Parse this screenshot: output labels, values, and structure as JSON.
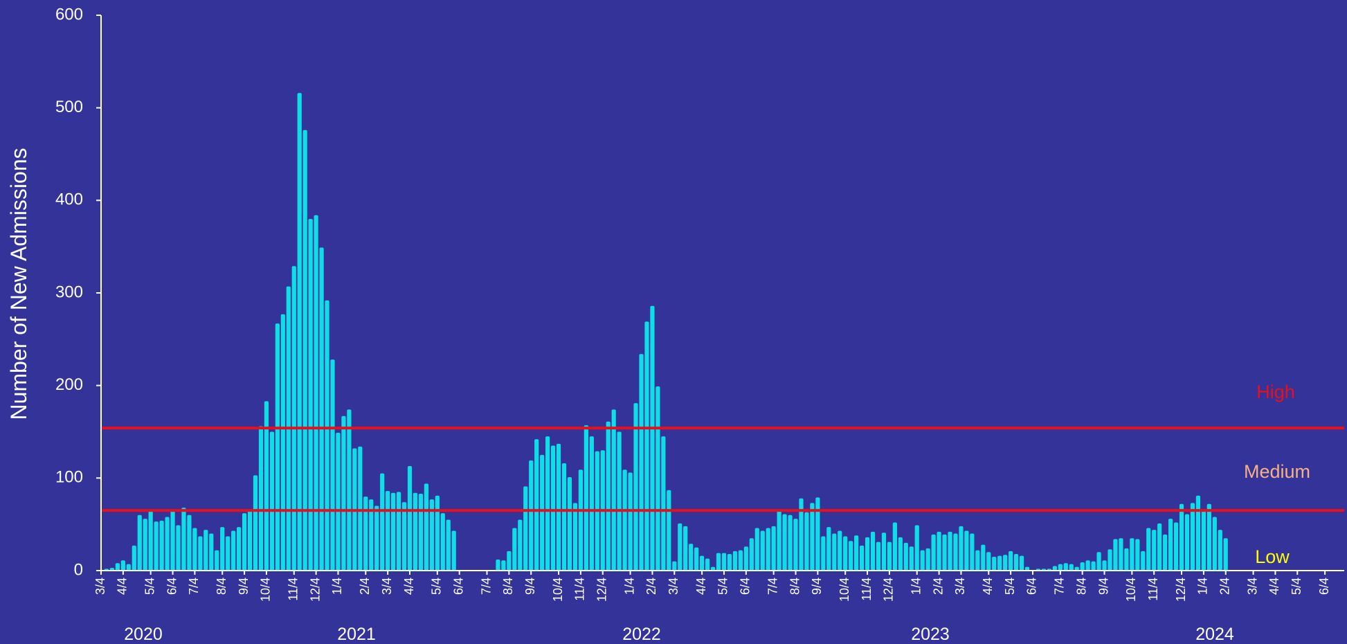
{
  "chart_data": {
    "type": "bar",
    "y_label": "Number of New Admissions",
    "color": "#0fdde8",
    "ylim": [
      0,
      600
    ],
    "yticks": [
      0,
      100,
      200,
      300,
      400,
      500,
      600
    ],
    "year_labels": [
      "2020",
      "2021",
      "2022",
      "2023",
      "2024"
    ],
    "reference_lines": [
      {
        "name": "High",
        "value": 154,
        "color": "#e8101a"
      },
      {
        "name": "Medium",
        "value": 65,
        "color": "#e8101a"
      }
    ],
    "annotations": [
      {
        "text": "High",
        "color": "#e8101a"
      },
      {
        "text": "Medium",
        "color": "#f4b183"
      },
      {
        "text": "Low",
        "color": "#ffff00"
      }
    ],
    "categories": [
      "3/4",
      null,
      null,
      null,
      "4/4",
      null,
      null,
      null,
      null,
      "5/4",
      null,
      null,
      null,
      "6/4",
      null,
      null,
      null,
      "7/4",
      null,
      null,
      null,
      null,
      "8/4",
      null,
      null,
      null,
      "9/4",
      null,
      null,
      null,
      "10/4",
      null,
      null,
      null,
      null,
      "11/4",
      null,
      null,
      null,
      "12/4",
      null,
      null,
      null,
      "1/4",
      null,
      null,
      null,
      null,
      "2/4",
      null,
      null,
      null,
      "3/4",
      null,
      null,
      null,
      "4/4",
      null,
      null,
      null,
      null,
      "5/4",
      null,
      null,
      null,
      "6/4",
      null,
      null,
      null,
      null,
      "7/4",
      null,
      null,
      null,
      "8/4",
      null,
      null,
      null,
      "9/4",
      null,
      null,
      null,
      null,
      "10/4",
      null,
      null,
      null,
      "11/4",
      null,
      null,
      null,
      "12/4",
      null,
      null,
      null,
      null,
      "1/4",
      null,
      null,
      null,
      "2/4",
      null,
      null,
      null,
      "3/4",
      null,
      null,
      null,
      null,
      "4/4",
      null,
      null,
      null,
      "5/4",
      null,
      null,
      null,
      "6/4",
      null,
      null,
      null,
      null,
      "7/4",
      null,
      null,
      null,
      "8/4",
      null,
      null,
      null,
      "9/4",
      null,
      null,
      null,
      null,
      "10/4",
      null,
      null,
      null,
      "11/4",
      null,
      null,
      null,
      "12/4",
      null,
      null,
      null,
      null,
      "1/4",
      null,
      null,
      null,
      "2/4",
      null,
      null,
      null,
      "3/4",
      null,
      null,
      null,
      null,
      "4/4",
      null,
      null,
      null,
      "5/4",
      null,
      null,
      null,
      "6/4",
      null,
      null,
      null,
      null,
      "7/4",
      null,
      null,
      null,
      "8/4",
      null,
      null,
      null,
      "9/4",
      null,
      null,
      null,
      null,
      "10/4",
      null,
      null,
      null,
      "11/4",
      null,
      null,
      null,
      null,
      "12/4",
      null,
      null,
      null,
      "1/4",
      null,
      null,
      null,
      "2/4",
      null,
      null,
      null,
      null,
      "3/4",
      null,
      null,
      null,
      "4/4",
      null,
      null,
      null,
      "5/4",
      null,
      null,
      null,
      null,
      "6/4",
      null,
      null
    ],
    "values": [
      null,
      2,
      3,
      8,
      11,
      7,
      27,
      60,
      56,
      65,
      53,
      54,
      58,
      65,
      49,
      68,
      60,
      46,
      37,
      44,
      40,
      22,
      47,
      37,
      43,
      47,
      62,
      66,
      103,
      156,
      183,
      150,
      267,
      277,
      307,
      329,
      516,
      476,
      380,
      384,
      349,
      292,
      228,
      149,
      167,
      174,
      132,
      134,
      80,
      77,
      70,
      105,
      86,
      84,
      85,
      74,
      113,
      84,
      83,
      94,
      77,
      81,
      62,
      55,
      43,
      null,
      null,
      null,
      null,
      null,
      null,
      null,
      12,
      11,
      21,
      46,
      55,
      91,
      119,
      142,
      125,
      145,
      135,
      137,
      116,
      101,
      73,
      109,
      157,
      145,
      129,
      130,
      161,
      174,
      150,
      109,
      106,
      181,
      234,
      269,
      286,
      199,
      145,
      87,
      10,
      51,
      48,
      29,
      25,
      16,
      13,
      4,
      19,
      19,
      18,
      21,
      22,
      26,
      35,
      46,
      43,
      46,
      48,
      65,
      61,
      60,
      56,
      78,
      63,
      73,
      79,
      37,
      47,
      40,
      43,
      37,
      32,
      38,
      27,
      36,
      42,
      31,
      41,
      31,
      52,
      36,
      30,
      26,
      49,
      22,
      24,
      39,
      42,
      39,
      42,
      40,
      48,
      43,
      40,
      22,
      28,
      20,
      15,
      16,
      17,
      21,
      18,
      16,
      4,
      0,
      2,
      2,
      2,
      5,
      7,
      8,
      7,
      4,
      9,
      11,
      10,
      20,
      11,
      23,
      34,
      35,
      24,
      35,
      34,
      21,
      46,
      44,
      51,
      39,
      56,
      52,
      72,
      61,
      73,
      81,
      66,
      72,
      58,
      44,
      35,
      null,
      null,
      null,
      null,
      null,
      null,
      null,
      null,
      null,
      null,
      null,
      null,
      null,
      null,
      null,
      null,
      null,
      null,
      null,
      null
    ]
  }
}
